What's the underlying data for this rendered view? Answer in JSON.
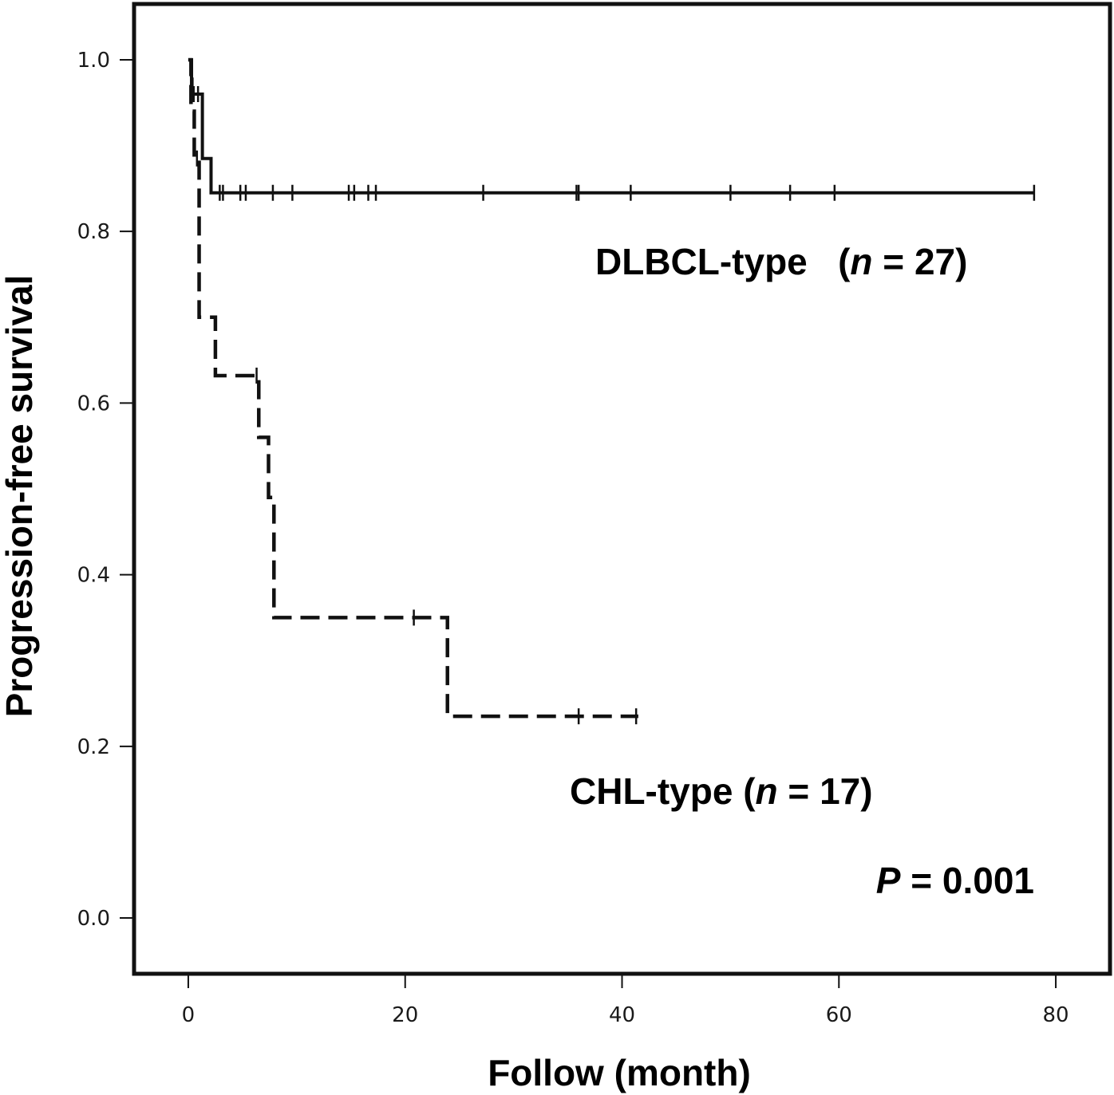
{
  "chart_data": {
    "type": "line",
    "chart_subtype": "kaplan-meier",
    "title": "",
    "xlabel": "Follow (month)",
    "ylabel": "Progression-free survival",
    "xlim": [
      -5,
      85
    ],
    "ylim": [
      -0.065,
      1.065
    ],
    "xticks": [
      "0",
      "20",
      "40",
      "60",
      "80"
    ],
    "yticks": [
      "0.0",
      "0.2",
      "0.4",
      "0.6",
      "0.8",
      "1.0"
    ],
    "grid": false,
    "series": [
      {
        "style": "solid",
        "label": {
          "prefix": "DLBCL-type   (",
          "n_var": "n",
          "n_rest": " = 27)"
        },
        "steps": [
          [
            0,
            1.0
          ],
          [
            0.3,
            0.96
          ],
          [
            1.3,
            0.885
          ],
          [
            2.1,
            0.845
          ],
          [
            78,
            0.845
          ]
        ],
        "censors": [
          [
            0.5,
            0.96
          ],
          [
            0.9,
            0.96
          ],
          [
            2.9,
            0.845
          ],
          [
            3.2,
            0.845
          ],
          [
            4.8,
            0.845
          ],
          [
            5.3,
            0.845
          ],
          [
            7.8,
            0.845
          ],
          [
            9.6,
            0.845
          ],
          [
            14.8,
            0.845
          ],
          [
            15.3,
            0.845
          ],
          [
            16.6,
            0.845
          ],
          [
            17.3,
            0.845
          ],
          [
            27.2,
            0.845
          ],
          [
            35.8,
            0.845
          ],
          [
            36.0,
            0.845
          ],
          [
            40.8,
            0.845
          ],
          [
            50.0,
            0.845
          ],
          [
            55.5,
            0.845
          ],
          [
            59.6,
            0.845
          ],
          [
            78.0,
            0.845
          ]
        ]
      },
      {
        "style": "dashed",
        "label": {
          "prefix": "CHL-type (",
          "n_var": "n",
          "n_rest": " = 17)"
        },
        "steps": [
          [
            0,
            1.0
          ],
          [
            0.25,
            0.94
          ],
          [
            0.55,
            0.885
          ],
          [
            1.0,
            0.7
          ],
          [
            2.5,
            0.632
          ],
          [
            6.5,
            0.56
          ],
          [
            7.4,
            0.49
          ],
          [
            7.9,
            0.35
          ],
          [
            23.9,
            0.235
          ],
          [
            41.5,
            0.235
          ]
        ],
        "censors": [
          [
            0.4,
            0.97
          ],
          [
            0.8,
            0.885
          ],
          [
            6.3,
            0.632
          ],
          [
            20.8,
            0.35
          ],
          [
            36.0,
            0.235
          ],
          [
            41.3,
            0.235
          ]
        ]
      }
    ],
    "p_value": {
      "var": "P",
      "rest": " = 0.001"
    }
  }
}
